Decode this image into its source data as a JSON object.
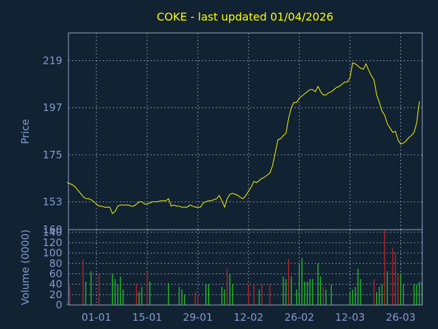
{
  "chart_data": {
    "type": "line",
    "title": "COKE - last updated 01/04/2026",
    "colors": {
      "background": "#112233",
      "axis": "#9aa6c4",
      "text": "#8899cc",
      "title": "#ffff00",
      "price_line": "#ffff00",
      "volume_up": "#22cc22",
      "volume_down": "#cc2222"
    },
    "price_panel": {
      "ylabel": "Price",
      "ylim": [
        140,
        232
      ],
      "ytick_labels": [
        "219",
        "197",
        "175",
        "153"
      ],
      "ytick_values": [
        219,
        197,
        175,
        153
      ],
      "grid": true
    },
    "volume_panel": {
      "ylabel": "Volume (0000)",
      "ylim": [
        0,
        145
      ],
      "ytick_labels": [
        "0",
        "20",
        "40",
        "60",
        "80",
        "100",
        "120",
        "140"
      ],
      "ytick_values": [
        0,
        20,
        40,
        60,
        80,
        100,
        120,
        140
      ],
      "corner_label": "160",
      "grid": true
    },
    "x_axis": {
      "tick_labels": [
        "01-01",
        "15-01",
        "29-01",
        "12-02",
        "26-02",
        "12-03",
        "26-03"
      ],
      "tick_index": [
        11,
        30,
        49,
        68,
        87,
        106,
        125
      ]
    },
    "series": [
      {
        "values": [
          162,
          161.5,
          161,
          160,
          158.5,
          157,
          155.5,
          154.5,
          154.5,
          154,
          153,
          152,
          151,
          151,
          150.5,
          150.5,
          150.5,
          147.5,
          148.5,
          151,
          151.5,
          151.5,
          151.5,
          151.5,
          151,
          151,
          152,
          153,
          153,
          152,
          152,
          152.5,
          153,
          153,
          153,
          153.5,
          153.5,
          153.5,
          154.5,
          151,
          151.5,
          151,
          151,
          150.5,
          150.5,
          150.5,
          151.5,
          151,
          150.5,
          150.5,
          150.5,
          152.5,
          153,
          153.5,
          153.5,
          154,
          154.5,
          156,
          153.5,
          150.5,
          154.5,
          156.5,
          157,
          156.5,
          156,
          155,
          154.5,
          156,
          158,
          160,
          162.5,
          162,
          163,
          164,
          164.5,
          165.5,
          166.5,
          170,
          176,
          182,
          182.5,
          184,
          185,
          192,
          197,
          199.5,
          199.5,
          201.5,
          202.5,
          203.5,
          204.5,
          205.5,
          205.5,
          204.5,
          207,
          204.5,
          203,
          203,
          204,
          204.5,
          205.5,
          206.5,
          207,
          208,
          209,
          209,
          211,
          218,
          217.5,
          216.5,
          215.5,
          215,
          217.5,
          214.5,
          212,
          210,
          203,
          199.5,
          195.5,
          193.5,
          189.5,
          187.5,
          185.5,
          186,
          182,
          180,
          180.5,
          181.5,
          183,
          184,
          185.5,
          190,
          200
        ]
      }
    ],
    "volume": {
      "values": [
        3,
        37,
        0,
        0,
        0,
        0,
        88,
        45,
        0,
        65,
        0,
        0,
        60,
        0,
        0,
        0,
        0,
        60,
        50,
        40,
        55,
        30,
        0,
        0,
        0,
        0,
        40,
        25,
        35,
        0,
        65,
        45,
        0,
        0,
        0,
        0,
        0,
        0,
        42,
        0,
        0,
        0,
        35,
        30,
        20,
        0,
        0,
        0,
        25,
        20,
        0,
        0,
        40,
        40,
        0,
        0,
        0,
        0,
        35,
        30,
        70,
        60,
        40,
        0,
        0,
        0,
        0,
        0,
        40,
        0,
        40,
        0,
        30,
        40,
        0,
        0,
        40,
        0,
        0,
        0,
        0,
        55,
        50,
        88,
        55,
        0,
        30,
        80,
        90,
        45,
        45,
        50,
        50,
        0,
        80,
        55,
        35,
        30,
        0,
        40,
        0,
        0,
        0,
        0,
        0,
        0,
        25,
        30,
        35,
        70,
        50,
        0,
        0,
        0,
        0,
        50,
        25,
        35,
        40,
        145,
        65,
        0,
        110,
        100,
        60,
        60,
        40,
        0,
        0,
        0,
        40,
        40,
        45,
        45
      ],
      "down": [
        0,
        1,
        0,
        0,
        0,
        0,
        1,
        0,
        0,
        0,
        0,
        0,
        1,
        0,
        0,
        0,
        0,
        0,
        0,
        0,
        0,
        0,
        0,
        0,
        0,
        0,
        1,
        0,
        0,
        0,
        1,
        0,
        0,
        0,
        0,
        0,
        0,
        0,
        0,
        0,
        0,
        0,
        0,
        0,
        0,
        0,
        0,
        0,
        1,
        1,
        0,
        0,
        0,
        0,
        0,
        0,
        0,
        0,
        0,
        0,
        1,
        0,
        0,
        0,
        0,
        0,
        0,
        0,
        1,
        0,
        1,
        0,
        0,
        1,
        0,
        0,
        1,
        0,
        0,
        0,
        0,
        0,
        0,
        1,
        0,
        0,
        0,
        0,
        0,
        0,
        0,
        0,
        0,
        0,
        0,
        0,
        1,
        0,
        0,
        0,
        0,
        0,
        0,
        0,
        0,
        0,
        0,
        0,
        0,
        0,
        0,
        0,
        0,
        0,
        0,
        1,
        0,
        0,
        0,
        1,
        0,
        0,
        1,
        1,
        1,
        0,
        0,
        0,
        0,
        0,
        0,
        0,
        0,
        0
      ]
    }
  }
}
